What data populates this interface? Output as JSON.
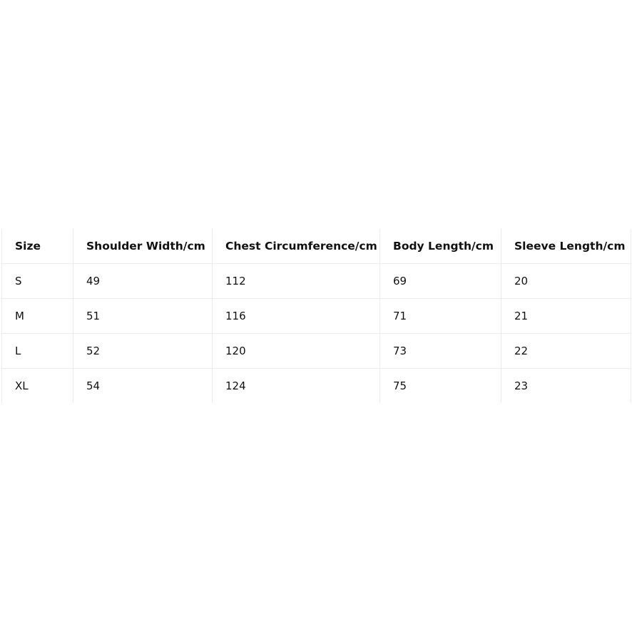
{
  "table": {
    "headers": [
      "Size",
      "Shoulder Width/cm",
      "Chest Circumference/cm",
      "Body Length/cm",
      "Sleeve Length/cm"
    ],
    "rows": [
      [
        "S",
        "49",
        "112",
        "69",
        "20"
      ],
      [
        "M",
        "51",
        "116",
        "71",
        "21"
      ],
      [
        "L",
        "52",
        "120",
        "73",
        "22"
      ],
      [
        "XL",
        "54",
        "124",
        "75",
        "23"
      ]
    ]
  }
}
